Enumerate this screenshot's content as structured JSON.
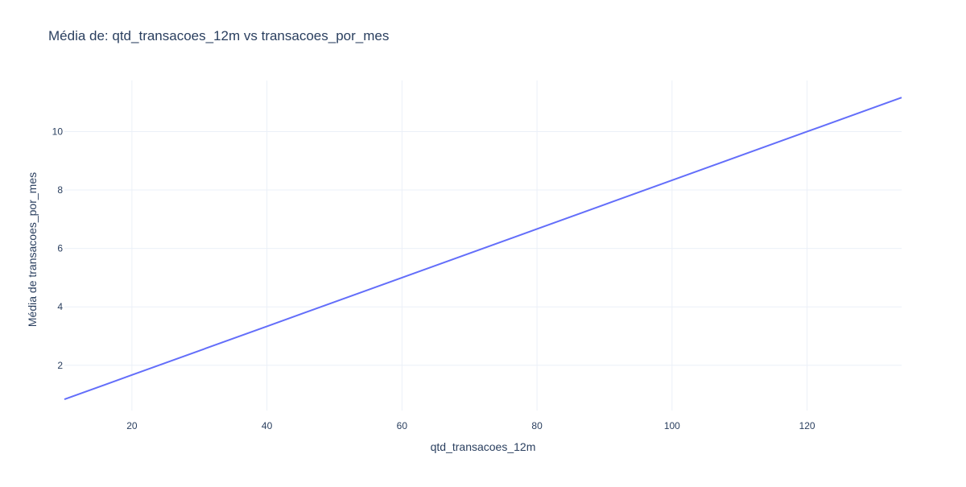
{
  "chart_data": {
    "type": "line",
    "title": "Média de: qtd_transacoes_12m vs transacoes_por_mes",
    "xlabel": "qtd_transacoes_12m",
    "ylabel": "Média de transacoes_por_mes",
    "xlim": [
      10,
      134
    ],
    "ylim": [
      0.45,
      11.75
    ],
    "x_ticks": [
      20,
      40,
      60,
      80,
      100,
      120
    ],
    "y_ticks": [
      2,
      4,
      6,
      8,
      10
    ],
    "grid": true,
    "series": [
      {
        "color": "#636efa",
        "x": [
          10,
          20,
          40,
          60,
          80,
          100,
          120,
          134
        ],
        "y": [
          0.833,
          1.667,
          3.333,
          5.0,
          6.667,
          8.333,
          10.0,
          11.167
        ]
      }
    ]
  }
}
